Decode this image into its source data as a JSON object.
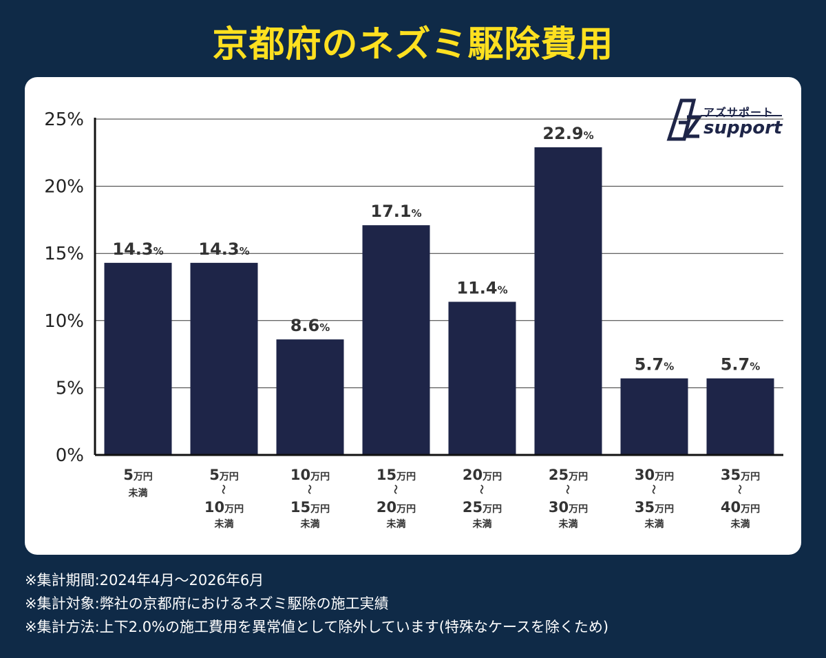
{
  "header": {
    "title": "京都府のネズミ駆除費用"
  },
  "logo": {
    "japanese": "アズサポート",
    "english": "support",
    "mark": "AZ"
  },
  "chart_data": {
    "type": "bar",
    "ylim": [
      0,
      25
    ],
    "yticks": [
      "0%",
      "5%",
      "10%",
      "15%",
      "20%",
      "25%"
    ],
    "ytick_values": [
      0,
      5,
      10,
      15,
      20,
      25
    ],
    "values": [
      14.3,
      14.3,
      8.6,
      17.1,
      11.4,
      22.9,
      5.7,
      5.7
    ],
    "value_labels": [
      "14.3",
      "14.3",
      "8.6",
      "17.1",
      "11.4",
      "22.9",
      "5.7",
      "5.7"
    ],
    "value_unit": "%",
    "categories": [
      {
        "from": "5",
        "to": "",
        "unit": "万円",
        "suffix": "未満"
      },
      {
        "from": "5",
        "to": "10",
        "unit": "万円",
        "suffix": "未満"
      },
      {
        "from": "10",
        "to": "15",
        "unit": "万円",
        "suffix": "未満"
      },
      {
        "from": "15",
        "to": "20",
        "unit": "万円",
        "suffix": "未満"
      },
      {
        "from": "20",
        "to": "25",
        "unit": "万円",
        "suffix": "未満"
      },
      {
        "from": "25",
        "to": "30",
        "unit": "万円",
        "suffix": "未満"
      },
      {
        "from": "30",
        "to": "35",
        "unit": "万円",
        "suffix": "未満"
      },
      {
        "from": "35",
        "to": "40",
        "unit": "万円",
        "suffix": "未満"
      }
    ],
    "range_symbol": "〜",
    "grid": true,
    "colors": {
      "bar": "#1e2548",
      "grid": "#333333",
      "text": "#333333"
    }
  },
  "notes": [
    "※集計期間:2024年4月〜2026年6月",
    "※集計対象:弊社の京都府におけるネズミ駆除の施工実績",
    "※集計方法:上下2.0%の施工費用を異常値として除外しています(特殊なケースを除くため)"
  ]
}
